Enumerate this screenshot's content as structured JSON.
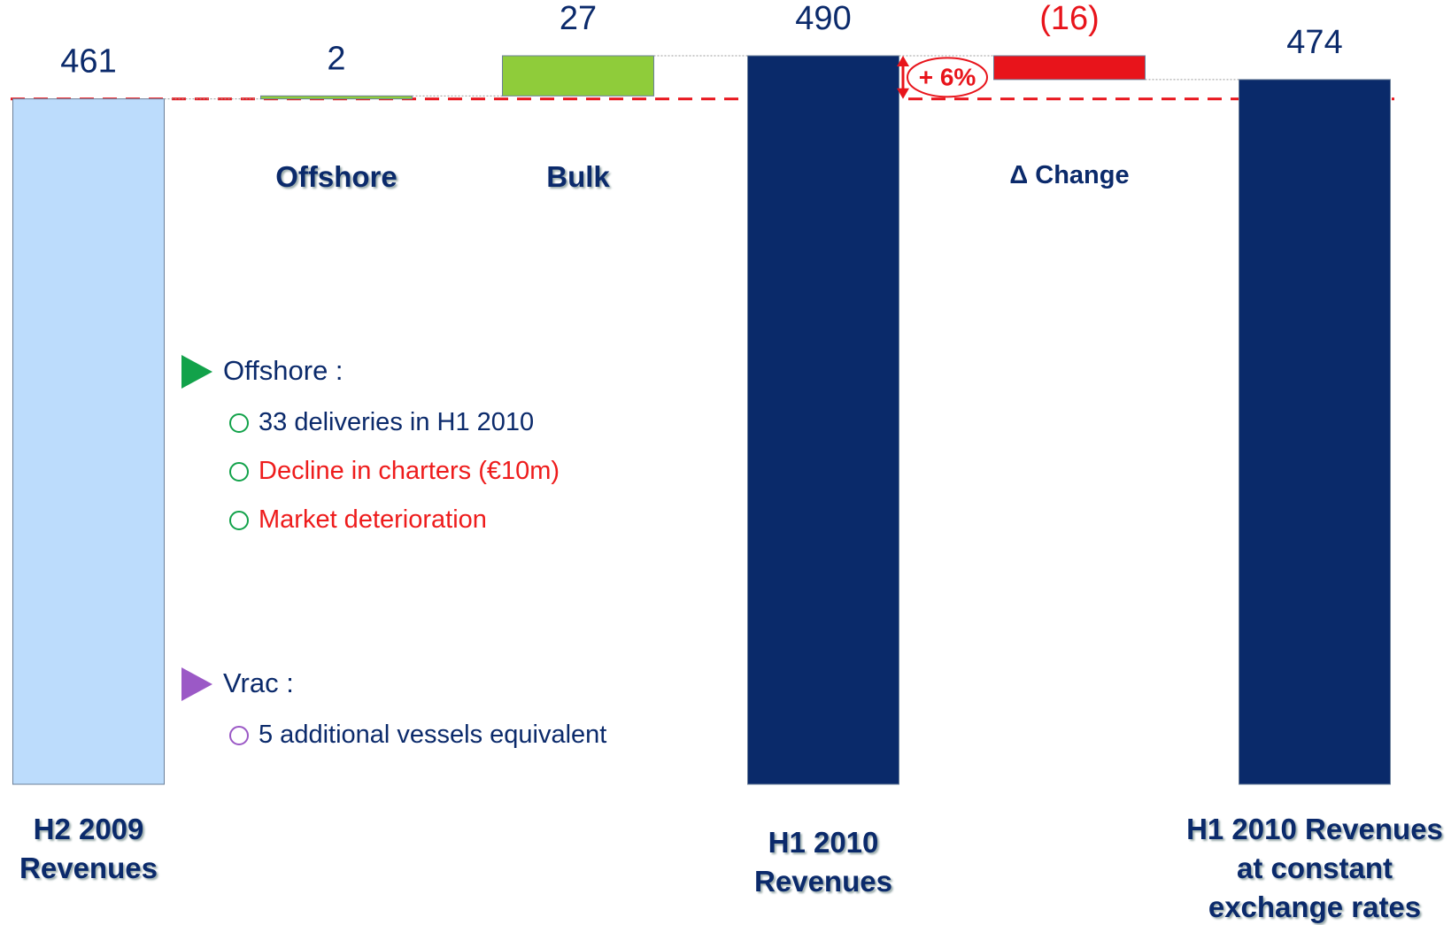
{
  "chart_data": {
    "type": "waterfall",
    "categories": [
      "H2 2009\nRevenues",
      "Offshore",
      "Bulk",
      "H1 2010\nRevenues",
      "Δ Change",
      "H1 2010 Revenues\nat constant\nexchange rates"
    ],
    "values": [
      461,
      2,
      27,
      490,
      -16,
      474
    ],
    "value_labels": [
      "461",
      "2",
      "27",
      "490",
      "(16)",
      "474"
    ],
    "measure": [
      "absolute",
      "relative",
      "relative",
      "total",
      "relative",
      "total"
    ],
    "colors": [
      "#bcdcfc",
      "#8fcc3a",
      "#8fcc3a",
      "#0a2a6a",
      "#e8141b",
      "#0a2a6a"
    ],
    "label_colors": [
      "#0b2a6b",
      "#0b2a6b",
      "#0b2a6b",
      "#0b2a6b",
      "#e8141b",
      "#0b2a6b"
    ],
    "annotation": "+ 6%",
    "notes": [
      {
        "heading": "Offshore :",
        "marker_color": "#12a24a",
        "items": [
          {
            "text": "33 deliveries in H1 2010",
            "color": "#0b2a6b"
          },
          {
            "text": "Decline in charters (€10m)",
            "color": "#ee1c1c"
          },
          {
            "text": "Market deterioration",
            "color": "#ee1c1c"
          }
        ]
      },
      {
        "heading": "Vrac :",
        "marker_color": "#9b59c6",
        "items": [
          {
            "text": "5 additional vessels equivalent",
            "color": "#0b2a6b"
          }
        ]
      }
    ]
  }
}
